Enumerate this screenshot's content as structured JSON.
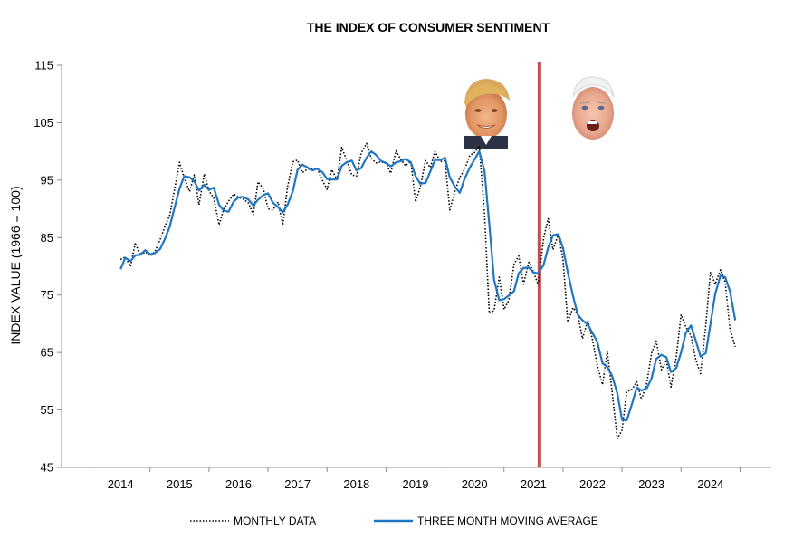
{
  "chart_data": {
    "type": "line",
    "title": "THE INDEX OF CONSUMER SENTIMENT",
    "xlabel": "",
    "ylabel": "INDEX VALUE (1966 = 100)",
    "ylim": [
      45,
      115
    ],
    "yticks": [
      45,
      55,
      65,
      75,
      85,
      95,
      105,
      115
    ],
    "xlim": [
      2013,
      2025
    ],
    "xtick_labels": [
      "2014",
      "2015",
      "2016",
      "2017",
      "2018",
      "2019",
      "2020",
      "2021",
      "2022",
      "2023",
      "2024"
    ],
    "grid": false,
    "legend_position": "bottom",
    "marker_line": {
      "x": 2021.1,
      "color": "#c0504d"
    },
    "portraits": [
      "trump-portrait",
      "biden-portrait"
    ],
    "series": [
      {
        "name": "MONTHLY DATA",
        "style": "dotted",
        "color": "#000000",
        "points": [
          [
            2014.0,
            81.2
          ],
          [
            2014.08,
            81.6
          ],
          [
            2014.17,
            80.0
          ],
          [
            2014.25,
            84.1
          ],
          [
            2014.33,
            81.9
          ],
          [
            2014.42,
            82.5
          ],
          [
            2014.5,
            81.8
          ],
          [
            2014.58,
            82.5
          ],
          [
            2014.67,
            84.6
          ],
          [
            2014.75,
            86.9
          ],
          [
            2014.83,
            88.8
          ],
          [
            2014.92,
            93.6
          ],
          [
            2015.0,
            98.1
          ],
          [
            2015.08,
            95.4
          ],
          [
            2015.17,
            93.0
          ],
          [
            2015.25,
            95.9
          ],
          [
            2015.33,
            90.7
          ],
          [
            2015.42,
            96.1
          ],
          [
            2015.5,
            93.1
          ],
          [
            2015.58,
            91.9
          ],
          [
            2015.67,
            87.2
          ],
          [
            2015.75,
            90.0
          ],
          [
            2015.83,
            91.3
          ],
          [
            2015.92,
            92.6
          ],
          [
            2016.0,
            92.0
          ],
          [
            2016.08,
            91.7
          ],
          [
            2016.17,
            91.0
          ],
          [
            2016.25,
            89.0
          ],
          [
            2016.33,
            94.7
          ],
          [
            2016.42,
            93.5
          ],
          [
            2016.5,
            90.0
          ],
          [
            2016.58,
            89.8
          ],
          [
            2016.67,
            91.2
          ],
          [
            2016.75,
            87.2
          ],
          [
            2016.83,
            93.8
          ],
          [
            2016.92,
            98.2
          ],
          [
            2017.0,
            98.5
          ],
          [
            2017.08,
            96.3
          ],
          [
            2017.17,
            96.9
          ],
          [
            2017.25,
            97.0
          ],
          [
            2017.33,
            97.1
          ],
          [
            2017.42,
            95.0
          ],
          [
            2017.5,
            93.4
          ],
          [
            2017.58,
            96.8
          ],
          [
            2017.67,
            95.1
          ],
          [
            2017.75,
            100.7
          ],
          [
            2017.83,
            98.5
          ],
          [
            2017.92,
            95.9
          ],
          [
            2018.0,
            95.7
          ],
          [
            2018.08,
            99.7
          ],
          [
            2018.17,
            101.4
          ],
          [
            2018.25,
            98.8
          ],
          [
            2018.33,
            98.0
          ],
          [
            2018.42,
            98.2
          ],
          [
            2018.5,
            97.9
          ],
          [
            2018.58,
            96.2
          ],
          [
            2018.67,
            100.1
          ],
          [
            2018.75,
            98.6
          ],
          [
            2018.83,
            97.5
          ],
          [
            2018.92,
            98.3
          ],
          [
            2019.0,
            91.2
          ],
          [
            2019.08,
            93.8
          ],
          [
            2019.17,
            98.4
          ],
          [
            2019.25,
            97.2
          ],
          [
            2019.33,
            100.0
          ],
          [
            2019.42,
            98.2
          ],
          [
            2019.5,
            98.4
          ],
          [
            2019.58,
            89.8
          ],
          [
            2019.67,
            93.2
          ],
          [
            2019.75,
            95.5
          ],
          [
            2019.83,
            96.8
          ],
          [
            2019.92,
            99.3
          ],
          [
            2020.0,
            99.8
          ],
          [
            2020.08,
            101.0
          ],
          [
            2020.17,
            89.1
          ],
          [
            2020.25,
            71.8
          ],
          [
            2020.33,
            72.3
          ],
          [
            2020.42,
            78.1
          ],
          [
            2020.5,
            72.5
          ],
          [
            2020.58,
            74.1
          ],
          [
            2020.67,
            80.4
          ],
          [
            2020.75,
            81.8
          ],
          [
            2020.83,
            76.9
          ],
          [
            2020.92,
            80.7
          ],
          [
            2021.0,
            79.0
          ],
          [
            2021.08,
            76.8
          ],
          [
            2021.17,
            84.9
          ],
          [
            2021.25,
            88.3
          ],
          [
            2021.33,
            82.9
          ],
          [
            2021.42,
            85.5
          ],
          [
            2021.5,
            81.2
          ],
          [
            2021.58,
            70.3
          ],
          [
            2021.67,
            72.8
          ],
          [
            2021.75,
            71.7
          ],
          [
            2021.83,
            67.4
          ],
          [
            2021.92,
            70.6
          ],
          [
            2022.0,
            67.2
          ],
          [
            2022.08,
            62.8
          ],
          [
            2022.17,
            59.4
          ],
          [
            2022.25,
            65.2
          ],
          [
            2022.33,
            58.4
          ],
          [
            2022.42,
            50.0
          ],
          [
            2022.5,
            51.5
          ],
          [
            2022.58,
            58.2
          ],
          [
            2022.67,
            58.6
          ],
          [
            2022.75,
            59.9
          ],
          [
            2022.83,
            56.8
          ],
          [
            2022.92,
            59.7
          ],
          [
            2023.0,
            64.9
          ],
          [
            2023.08,
            67.0
          ],
          [
            2023.17,
            62.0
          ],
          [
            2023.25,
            63.7
          ],
          [
            2023.33,
            59.0
          ],
          [
            2023.42,
            64.2
          ],
          [
            2023.5,
            71.6
          ],
          [
            2023.58,
            69.5
          ],
          [
            2023.67,
            67.9
          ],
          [
            2023.75,
            63.8
          ],
          [
            2023.83,
            61.3
          ],
          [
            2023.92,
            69.7
          ],
          [
            2024.0,
            79.0
          ],
          [
            2024.08,
            76.9
          ],
          [
            2024.17,
            79.4
          ],
          [
            2024.25,
            77.2
          ],
          [
            2024.33,
            69.1
          ],
          [
            2024.42,
            66.0
          ]
        ]
      },
      {
        "name": "THREE MONTH MOVING AVERAGE",
        "style": "solid",
        "color": "#1f77c4",
        "points": [
          [
            2014.0,
            79.5
          ],
          [
            2014.08,
            81.5
          ],
          [
            2014.17,
            80.9
          ],
          [
            2014.25,
            81.9
          ],
          [
            2014.33,
            82.0
          ],
          [
            2014.42,
            82.8
          ],
          [
            2014.5,
            82.1
          ],
          [
            2014.58,
            82.3
          ],
          [
            2014.67,
            83.0
          ],
          [
            2014.75,
            84.7
          ],
          [
            2014.83,
            86.8
          ],
          [
            2014.92,
            90.4
          ],
          [
            2015.0,
            93.5
          ],
          [
            2015.08,
            95.7
          ],
          [
            2015.17,
            95.5
          ],
          [
            2015.25,
            94.8
          ],
          [
            2015.33,
            93.2
          ],
          [
            2015.42,
            94.2
          ],
          [
            2015.5,
            93.3
          ],
          [
            2015.58,
            93.7
          ],
          [
            2015.67,
            90.7
          ],
          [
            2015.75,
            89.7
          ],
          [
            2015.83,
            89.5
          ],
          [
            2015.92,
            91.3
          ],
          [
            2016.0,
            92.0
          ],
          [
            2016.08,
            92.1
          ],
          [
            2016.17,
            91.6
          ],
          [
            2016.25,
            90.6
          ],
          [
            2016.33,
            91.6
          ],
          [
            2016.42,
            92.4
          ],
          [
            2016.5,
            92.7
          ],
          [
            2016.58,
            91.1
          ],
          [
            2016.67,
            90.3
          ],
          [
            2016.75,
            89.4
          ],
          [
            2016.83,
            90.7
          ],
          [
            2016.92,
            93.1
          ],
          [
            2017.0,
            96.8
          ],
          [
            2017.08,
            97.7
          ],
          [
            2017.17,
            97.2
          ],
          [
            2017.25,
            96.7
          ],
          [
            2017.33,
            97.0
          ],
          [
            2017.42,
            96.4
          ],
          [
            2017.5,
            95.2
          ],
          [
            2017.58,
            95.1
          ],
          [
            2017.67,
            95.1
          ],
          [
            2017.75,
            97.5
          ],
          [
            2017.83,
            98.1
          ],
          [
            2017.92,
            98.4
          ],
          [
            2018.0,
            96.7
          ],
          [
            2018.08,
            97.1
          ],
          [
            2018.17,
            98.9
          ],
          [
            2018.25,
            100.0
          ],
          [
            2018.33,
            99.4
          ],
          [
            2018.42,
            98.3
          ],
          [
            2018.5,
            98.0
          ],
          [
            2018.58,
            97.4
          ],
          [
            2018.67,
            98.1
          ],
          [
            2018.75,
            98.3
          ],
          [
            2018.83,
            98.7
          ],
          [
            2018.92,
            98.1
          ],
          [
            2019.0,
            95.7
          ],
          [
            2019.08,
            94.4
          ],
          [
            2019.17,
            94.5
          ],
          [
            2019.25,
            96.5
          ],
          [
            2019.33,
            98.5
          ],
          [
            2019.42,
            98.5
          ],
          [
            2019.5,
            98.9
          ],
          [
            2019.58,
            95.5
          ],
          [
            2019.67,
            93.8
          ],
          [
            2019.75,
            92.8
          ],
          [
            2019.83,
            95.2
          ],
          [
            2019.92,
            97.2
          ],
          [
            2020.0,
            98.6
          ],
          [
            2020.08,
            100.0
          ],
          [
            2020.17,
            96.6
          ],
          [
            2020.25,
            87.3
          ],
          [
            2020.33,
            77.7
          ],
          [
            2020.42,
            74.1
          ],
          [
            2020.5,
            74.3
          ],
          [
            2020.58,
            74.9
          ],
          [
            2020.67,
            75.7
          ],
          [
            2020.75,
            78.8
          ],
          [
            2020.83,
            79.7
          ],
          [
            2020.92,
            79.8
          ],
          [
            2021.0,
            78.9
          ],
          [
            2021.08,
            78.8
          ],
          [
            2021.17,
            80.2
          ],
          [
            2021.25,
            83.3
          ],
          [
            2021.33,
            85.4
          ],
          [
            2021.42,
            85.6
          ],
          [
            2021.5,
            83.2
          ],
          [
            2021.58,
            79.0
          ],
          [
            2021.67,
            74.8
          ],
          [
            2021.75,
            71.6
          ],
          [
            2021.83,
            70.6
          ],
          [
            2021.92,
            69.9
          ],
          [
            2022.0,
            68.4
          ],
          [
            2022.08,
            66.9
          ],
          [
            2022.17,
            63.1
          ],
          [
            2022.25,
            62.5
          ],
          [
            2022.33,
            61.0
          ],
          [
            2022.42,
            57.9
          ],
          [
            2022.5,
            53.3
          ],
          [
            2022.58,
            53.2
          ],
          [
            2022.67,
            56.1
          ],
          [
            2022.75,
            58.9
          ],
          [
            2022.83,
            58.4
          ],
          [
            2022.92,
            58.8
          ],
          [
            2023.0,
            60.5
          ],
          [
            2023.08,
            63.9
          ],
          [
            2023.17,
            64.6
          ],
          [
            2023.25,
            64.2
          ],
          [
            2023.33,
            61.6
          ],
          [
            2023.42,
            62.3
          ],
          [
            2023.5,
            65.0
          ],
          [
            2023.58,
            68.4
          ],
          [
            2023.67,
            69.7
          ],
          [
            2023.75,
            67.1
          ],
          [
            2023.83,
            64.3
          ],
          [
            2023.92,
            64.9
          ],
          [
            2024.0,
            70.0
          ],
          [
            2024.08,
            75.2
          ],
          [
            2024.17,
            78.4
          ],
          [
            2024.25,
            78.1
          ],
          [
            2024.33,
            75.7
          ],
          [
            2024.42,
            70.6
          ]
        ]
      }
    ]
  }
}
